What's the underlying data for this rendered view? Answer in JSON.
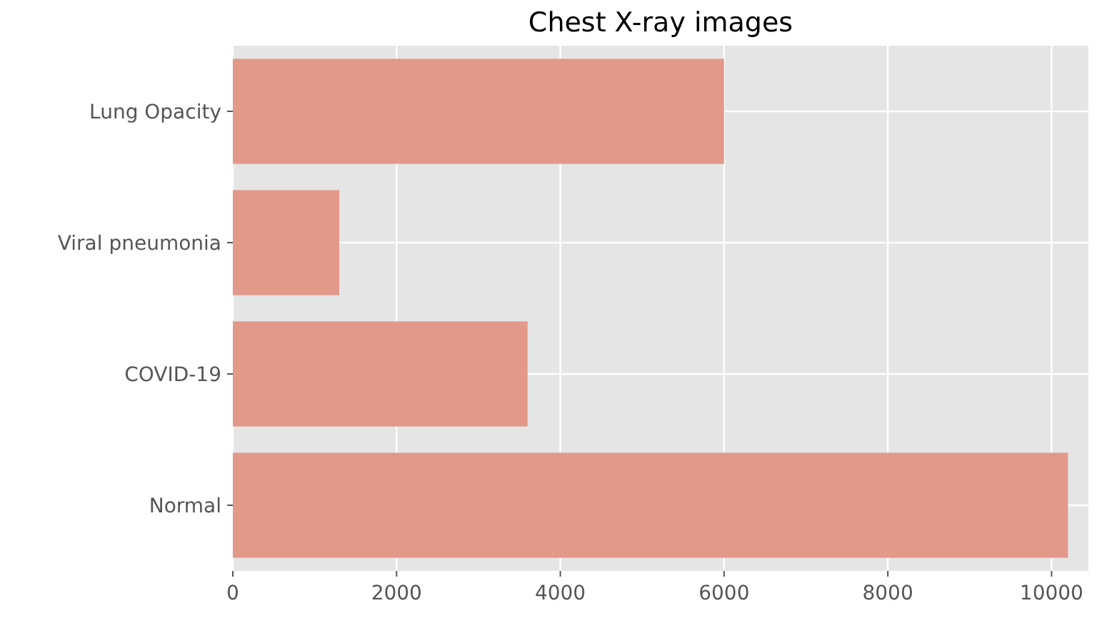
{
  "chart_data": {
    "type": "bar",
    "title": "Chest X-ray images",
    "orientation": "horizontal",
    "categories": [
      "Lung Opacity",
      "Viral pneumonia",
      "COVID-19",
      "Normal"
    ],
    "values": [
      6000,
      1300,
      3600,
      10200
    ],
    "color": "#e2998a",
    "xlim": [
      0,
      10450
    ],
    "xticks": [
      0,
      2000,
      4000,
      6000,
      8000,
      10000
    ],
    "grid": true
  }
}
